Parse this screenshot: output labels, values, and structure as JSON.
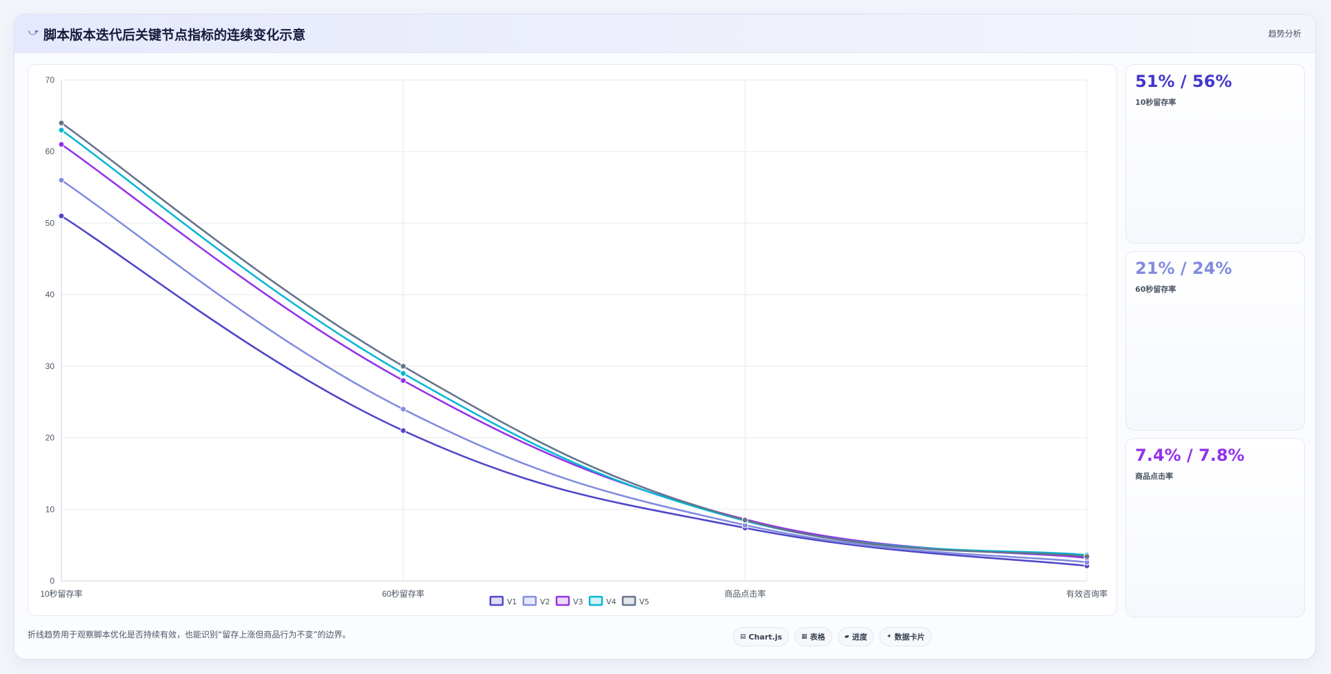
{
  "header": {
    "icon": "trend-line-icon",
    "title": "脚本版本迭代后关键节点指标的连续变化示意",
    "tag": "趋势分析"
  },
  "chart_data": {
    "type": "line",
    "title": "",
    "xlabel": "",
    "ylabel": "",
    "categories": [
      "10秒留存率",
      "60秒留存率",
      "商品点击率",
      "有效咨询率"
    ],
    "ylim": [
      0,
      70
    ],
    "yticks": [
      0,
      10,
      20,
      30,
      40,
      50,
      60,
      70
    ],
    "grid": true,
    "legend_position": "bottom",
    "series": [
      {
        "name": "V1",
        "color": "#4f46c8",
        "values": [
          51,
          21,
          7.4,
          2.1
        ]
      },
      {
        "name": "V2",
        "color": "#818cde",
        "values": [
          56,
          24,
          7.8,
          2.6
        ]
      },
      {
        "name": "V3",
        "color": "#9333ea",
        "values": [
          61,
          28,
          8.6,
          3.2
        ]
      },
      {
        "name": "V4",
        "color": "#06b6d4",
        "values": [
          63,
          29,
          8.4,
          3.6
        ]
      },
      {
        "name": "V5",
        "color": "#64748b",
        "values": [
          64,
          30,
          8.5,
          3.4
        ]
      }
    ]
  },
  "stats": [
    {
      "value": "51% / 56%",
      "label": "10秒留存率",
      "color": "#4338ca"
    },
    {
      "value": "21% / 24%",
      "label": "60秒留存率",
      "color": "#818cde"
    },
    {
      "value": "7.4% / 7.8%",
      "label": "商品点击率",
      "color": "#9333ea"
    }
  ],
  "footnote": "折线趋势用于观察脚本优化是否持续有效，也能识别“留存上涨但商品行为不变”的边界。",
  "chips": [
    {
      "icon": "chart-icon",
      "label": "Chart.js"
    },
    {
      "icon": "table-icon",
      "label": "表格"
    },
    {
      "icon": "progress-icon",
      "label": "进度"
    },
    {
      "icon": "sparkle-icon",
      "label": "数据卡片"
    }
  ]
}
